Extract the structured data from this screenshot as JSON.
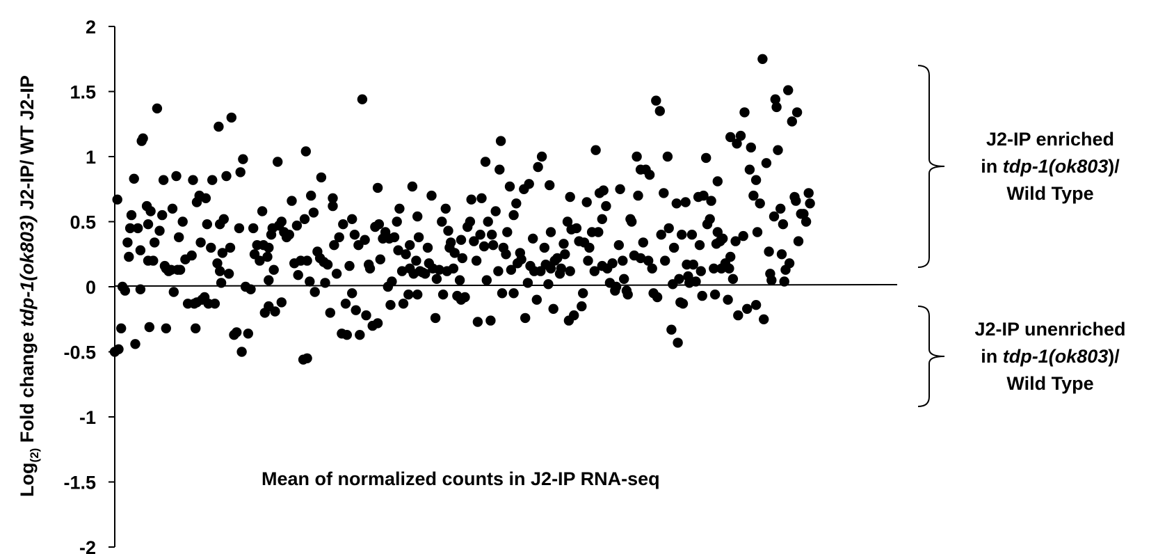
{
  "chart_data": {
    "type": "scatter",
    "title": "",
    "xlabel": "Mean of normalized counts in J2-IP RNA-seq",
    "ylabel": {
      "prefix": "Log",
      "subscript": "(2)",
      "middle": " Fold change ",
      "italic": "tdp-1(ok803)",
      "suffix": " J2-IP/ WT J2-IP"
    },
    "ylim": [
      -2,
      2
    ],
    "xlim": [
      0,
      610
    ],
    "yticks": [
      "2",
      "1.5",
      "1",
      "0.5",
      "0",
      "-0.5",
      "-1",
      "-1.5",
      "-2"
    ],
    "grid": false,
    "legend": "none",
    "point_color": "#000000",
    "annotations": [
      {
        "name": "enriched",
        "bracket": [
          0.15,
          1.7
        ],
        "lines": [
          [
            {
              "t": "J2-IP enriched",
              "i": false
            }
          ],
          [
            {
              "t": "in ",
              "i": false
            },
            {
              "t": "tdp-1(ok803",
              "i": true
            },
            {
              "t": ")/",
              "i": false
            }
          ],
          [
            {
              "t": "Wild Type",
              "i": false
            }
          ]
        ]
      },
      {
        "name": "unenriched",
        "bracket": [
          -0.92,
          -0.15
        ],
        "lines": [
          [
            {
              "t": "J2-IP unenriched",
              "i": false
            }
          ],
          [
            {
              "t": "in ",
              "i": false
            },
            {
              "t": "tdp-1(ok803",
              "i": true
            },
            {
              "t": ")/",
              "i": false
            }
          ],
          [
            {
              "t": "Wild Type",
              "i": false
            }
          ]
        ]
      }
    ],
    "points": [
      [
        0,
        -0.5
      ],
      [
        2,
        0.67
      ],
      [
        3,
        -0.48
      ],
      [
        5,
        -0.32
      ],
      [
        6,
        0.0
      ],
      [
        8,
        -0.03
      ],
      [
        10,
        0.34
      ],
      [
        11,
        0.23
      ],
      [
        12,
        0.45
      ],
      [
        13,
        0.55
      ],
      [
        15,
        0.83
      ],
      [
        16,
        -0.44
      ],
      [
        18,
        0.45
      ],
      [
        20,
        0.28
      ],
      [
        21,
        1.12
      ],
      [
        22,
        1.14
      ],
      [
        25,
        0.62
      ],
      [
        26,
        0.48
      ],
      [
        27,
        -0.31
      ],
      [
        28,
        0.58
      ],
      [
        30,
        0.2
      ],
      [
        31,
        0.34
      ],
      [
        33,
        1.37
      ],
      [
        35,
        0.43
      ],
      [
        37,
        0.55
      ],
      [
        38,
        0.82
      ],
      [
        39,
        0.16
      ],
      [
        40,
        -0.32
      ],
      [
        42,
        0.12
      ],
      [
        44,
        0.13
      ],
      [
        45,
        0.6
      ],
      [
        46,
        -0.04
      ],
      [
        48,
        0.85
      ],
      [
        49,
        0.13
      ],
      [
        50,
        0.38
      ],
      [
        51,
        0.13
      ],
      [
        53,
        0.5
      ],
      [
        55,
        0.21
      ],
      [
        57,
        -0.13
      ],
      [
        60,
        0.24
      ],
      [
        61,
        0.82
      ],
      [
        62,
        -0.13
      ],
      [
        63,
        -0.32
      ],
      [
        64,
        -0.12
      ],
      [
        66,
        0.7
      ],
      [
        67,
        0.34
      ],
      [
        68,
        -0.1
      ],
      [
        70,
        -0.08
      ],
      [
        71,
        0.68
      ],
      [
        73,
        -0.13
      ],
      [
        75,
        0.3
      ],
      [
        76,
        0.82
      ],
      [
        78,
        -0.13
      ],
      [
        80,
        0.18
      ],
      [
        81,
        1.23
      ],
      [
        82,
        0.48
      ],
      [
        83,
        0.03
      ],
      [
        84,
        0.26
      ],
      [
        85,
        0.52
      ],
      [
        87,
        0.85
      ],
      [
        89,
        0.1
      ],
      [
        90,
        0.3
      ],
      [
        91,
        1.3
      ],
      [
        93,
        -0.37
      ],
      [
        95,
        -0.35
      ],
      [
        97,
        0.45
      ],
      [
        99,
        -0.5
      ],
      [
        100,
        0.98
      ],
      [
        102,
        0.0
      ],
      [
        104,
        -0.36
      ],
      [
        106,
        -0.02
      ],
      [
        108,
        0.45
      ],
      [
        109,
        0.25
      ],
      [
        111,
        0.32
      ],
      [
        113,
        0.2
      ],
      [
        115,
        0.58
      ],
      [
        116,
        0.32
      ],
      [
        117,
        -0.2
      ],
      [
        119,
        0.23
      ],
      [
        120,
        0.3
      ],
      [
        122,
        0.4
      ],
      [
        123,
        0.45
      ],
      [
        124,
        0.13
      ],
      [
        125,
        -0.19
      ],
      [
        127,
        0.96
      ],
      [
        128,
        0.47
      ],
      [
        130,
        -0.12
      ],
      [
        132,
        0.42
      ],
      [
        134,
        0.38
      ],
      [
        136,
        0.4
      ],
      [
        138,
        0.66
      ],
      [
        140,
        0.18
      ],
      [
        142,
        0.47
      ],
      [
        143,
        0.09
      ],
      [
        145,
        0.2
      ],
      [
        147,
        -0.56
      ],
      [
        148,
        0.52
      ],
      [
        149,
        1.04
      ],
      [
        150,
        -0.55
      ],
      [
        152,
        0.04
      ],
      [
        153,
        0.7
      ],
      [
        155,
        0.57
      ],
      [
        156,
        -0.04
      ],
      [
        158,
        0.27
      ],
      [
        160,
        0.22
      ],
      [
        161,
        0.84
      ],
      [
        163,
        0.19
      ],
      [
        164,
        0.03
      ],
      [
        166,
        0.17
      ],
      [
        168,
        -0.2
      ],
      [
        170,
        0.68
      ],
      [
        171,
        0.32
      ],
      [
        173,
        0.1
      ],
      [
        175,
        0.38
      ],
      [
        177,
        -0.36
      ],
      [
        178,
        0.48
      ],
      [
        180,
        -0.13
      ],
      [
        181,
        -0.37
      ],
      [
        183,
        0.16
      ],
      [
        185,
        0.52
      ],
      [
        187,
        0.4
      ],
      [
        188,
        -0.18
      ],
      [
        190,
        0.32
      ],
      [
        191,
        -0.37
      ],
      [
        193,
        1.44
      ],
      [
        195,
        0.36
      ],
      [
        196,
        -0.22
      ],
      [
        198,
        0.17
      ],
      [
        199,
        0.14
      ],
      [
        201,
        -0.3
      ],
      [
        203,
        0.46
      ],
      [
        205,
        -0.28
      ],
      [
        206,
        0.48
      ],
      [
        207,
        0.21
      ],
      [
        209,
        0.37
      ],
      [
        211,
        0.42
      ],
      [
        213,
        0.0
      ],
      [
        214,
        0.37
      ],
      [
        215,
        -0.14
      ],
      [
        216,
        0.04
      ],
      [
        218,
        0.38
      ],
      [
        220,
        0.5
      ],
      [
        221,
        0.28
      ],
      [
        222,
        0.6
      ],
      [
        224,
        0.12
      ],
      [
        225,
        -0.13
      ],
      [
        227,
        0.25
      ],
      [
        229,
        -0.06
      ],
      [
        230,
        0.14
      ],
      [
        232,
        0.77
      ],
      [
        233,
        0.1
      ],
      [
        235,
        0.2
      ],
      [
        236,
        0.54
      ],
      [
        237,
        0.38
      ],
      [
        238,
        0.12
      ],
      [
        240,
        0.11
      ],
      [
        242,
        0.1
      ],
      [
        244,
        0.3
      ],
      [
        245,
        0.18
      ],
      [
        247,
        0.7
      ],
      [
        248,
        0.14
      ],
      [
        250,
        -0.24
      ],
      [
        251,
        0.06
      ],
      [
        253,
        0.13
      ],
      [
        255,
        0.5
      ],
      [
        256,
        -0.06
      ],
      [
        258,
        0.6
      ],
      [
        259,
        0.12
      ],
      [
        261,
        0.3
      ],
      [
        262,
        0.34
      ],
      [
        264,
        0.14
      ],
      [
        265,
        0.26
      ],
      [
        267,
        -0.07
      ],
      [
        269,
        0.05
      ],
      [
        270,
        0.36
      ],
      [
        271,
        0.22
      ],
      [
        273,
        -0.08
      ],
      [
        275,
        0.46
      ],
      [
        277,
        0.5
      ],
      [
        278,
        0.67
      ],
      [
        280,
        0.35
      ],
      [
        282,
        0.2
      ],
      [
        283,
        -0.27
      ],
      [
        285,
        0.4
      ],
      [
        286,
        0.68
      ],
      [
        288,
        0.31
      ],
      [
        289,
        0.96
      ],
      [
        291,
        0.5
      ],
      [
        293,
        -0.26
      ],
      [
        294,
        0.4
      ],
      [
        295,
        0.32
      ],
      [
        297,
        0.58
      ],
      [
        299,
        0.12
      ],
      [
        300,
        0.9
      ],
      [
        301,
        1.12
      ],
      [
        302,
        -0.05
      ],
      [
        303,
        0.3
      ],
      [
        305,
        0.25
      ],
      [
        306,
        0.42
      ],
      [
        308,
        0.77
      ],
      [
        309,
        0.13
      ],
      [
        311,
        -0.05
      ],
      [
        313,
        0.64
      ],
      [
        314,
        0.18
      ],
      [
        316,
        0.26
      ],
      [
        317,
        0.21
      ],
      [
        319,
        0.75
      ],
      [
        320,
        -0.24
      ],
      [
        322,
        0.03
      ],
      [
        323,
        0.79
      ],
      [
        324,
        0.16
      ],
      [
        326,
        0.37
      ],
      [
        327,
        0.12
      ],
      [
        329,
        -0.1
      ],
      [
        330,
        0.92
      ],
      [
        332,
        0.12
      ],
      [
        333,
        1.0
      ],
      [
        335,
        0.3
      ],
      [
        336,
        0.17
      ],
      [
        338,
        0.02
      ],
      [
        339,
        0.78
      ],
      [
        340,
        0.14
      ],
      [
        342,
        -0.17
      ],
      [
        343,
        0.2
      ],
      [
        345,
        0.22
      ],
      [
        347,
        0.1
      ],
      [
        348,
        0.14
      ],
      [
        350,
        0.33
      ],
      [
        351,
        0.25
      ],
      [
        353,
        0.5
      ],
      [
        354,
        -0.26
      ],
      [
        355,
        0.69
      ],
      [
        356,
        0.44
      ],
      [
        358,
        -0.22
      ],
      [
        360,
        0.45
      ],
      [
        362,
        0.35
      ],
      [
        364,
        -0.15
      ],
      [
        365,
        -0.05
      ],
      [
        366,
        0.34
      ],
      [
        368,
        0.65
      ],
      [
        369,
        0.2
      ],
      [
        370,
        0.3
      ],
      [
        372,
        0.42
      ],
      [
        374,
        0.12
      ],
      [
        375,
        1.05
      ],
      [
        377,
        0.42
      ],
      [
        378,
        0.72
      ],
      [
        380,
        0.16
      ],
      [
        381,
        0.74
      ],
      [
        383,
        0.62
      ],
      [
        384,
        0.14
      ],
      [
        386,
        0.03
      ],
      [
        388,
        0.18
      ],
      [
        390,
        -0.03
      ],
      [
        391,
        0.0
      ],
      [
        393,
        0.32
      ],
      [
        394,
        0.75
      ],
      [
        396,
        0.2
      ],
      [
        397,
        0.06
      ],
      [
        399,
        -0.03
      ],
      [
        400,
        -0.06
      ],
      [
        402,
        0.52
      ],
      [
        403,
        0.5
      ],
      [
        405,
        0.24
      ],
      [
        407,
        1.0
      ],
      [
        408,
        0.7
      ],
      [
        410,
        0.22
      ],
      [
        412,
        0.34
      ],
      [
        414,
        0.9
      ],
      [
        416,
        0.2
      ],
      [
        417,
        0.86
      ],
      [
        419,
        0.14
      ],
      [
        420,
        -0.05
      ],
      [
        422,
        1.43
      ],
      [
        423,
        -0.08
      ],
      [
        425,
        1.35
      ],
      [
        426,
        0.4
      ],
      [
        428,
        0.72
      ],
      [
        429,
        0.2
      ],
      [
        431,
        1.0
      ],
      [
        432,
        0.45
      ],
      [
        434,
        -0.33
      ],
      [
        435,
        0.02
      ],
      [
        436,
        0.3
      ],
      [
        438,
        0.64
      ],
      [
        439,
        -0.43
      ],
      [
        441,
        -0.12
      ],
      [
        442,
        0.4
      ],
      [
        443,
        -0.13
      ],
      [
        445,
        0.65
      ],
      [
        446,
        0.17
      ],
      [
        447,
        0.08
      ],
      [
        448,
        0.03
      ],
      [
        450,
        0.4
      ],
      [
        451,
        0.17
      ],
      [
        453,
        0.04
      ],
      [
        455,
        0.69
      ],
      [
        456,
        0.32
      ],
      [
        458,
        -0.07
      ],
      [
        459,
        0.7
      ],
      [
        461,
        0.99
      ],
      [
        462,
        0.48
      ],
      [
        464,
        0.52
      ],
      [
        465,
        0.66
      ],
      [
        467,
        0.14
      ],
      [
        468,
        -0.06
      ],
      [
        469,
        0.33
      ],
      [
        470,
        0.81
      ],
      [
        472,
        0.35
      ],
      [
        473,
        0.14
      ],
      [
        474,
        0.37
      ],
      [
        476,
        0.18
      ],
      [
        478,
        -0.1
      ],
      [
        479,
        0.14
      ],
      [
        480,
        1.15
      ],
      [
        482,
        0.06
      ],
      [
        484,
        0.35
      ],
      [
        485,
        1.1
      ],
      [
        486,
        -0.22
      ],
      [
        488,
        1.16
      ],
      [
        490,
        0.39
      ],
      [
        491,
        1.34
      ],
      [
        493,
        -0.17
      ],
      [
        495,
        0.9
      ],
      [
        496,
        1.07
      ],
      [
        498,
        0.7
      ],
      [
        500,
        0.82
      ],
      [
        501,
        0.42
      ],
      [
        503,
        0.64
      ],
      [
        505,
        1.75
      ],
      [
        506,
        -0.25
      ],
      [
        508,
        0.95
      ],
      [
        510,
        0.27
      ],
      [
        511,
        0.1
      ],
      [
        512,
        0.05
      ],
      [
        514,
        0.54
      ],
      [
        515,
        1.44
      ],
      [
        516,
        1.38
      ],
      [
        517,
        1.05
      ],
      [
        519,
        0.6
      ],
      [
        521,
        0.48
      ],
      [
        522,
        0.04
      ],
      [
        523,
        0.13
      ],
      [
        525,
        1.51
      ],
      [
        526,
        0.18
      ],
      [
        528,
        1.27
      ],
      [
        530,
        0.69
      ],
      [
        531,
        0.66
      ],
      [
        532,
        1.34
      ],
      [
        533,
        0.35
      ],
      [
        535,
        0.56
      ],
      [
        537,
        0.56
      ],
      [
        539,
        0.5
      ],
      [
        541,
        0.72
      ],
      [
        542,
        0.64
      ],
      [
        170,
        0.62
      ],
      [
        40,
        0.14
      ],
      [
        236,
        -0.06
      ],
      [
        98,
        0.88
      ],
      [
        72,
        0.48
      ],
      [
        120,
        -0.15
      ],
      [
        260,
        0.43
      ],
      [
        205,
        0.76
      ],
      [
        457,
        0.12
      ],
      [
        311,
        0.55
      ],
      [
        470,
        0.42
      ],
      [
        150,
        0.2
      ],
      [
        82,
        0.12
      ],
      [
        355,
        0.12
      ],
      [
        26,
        0.2
      ],
      [
        480,
        0.23
      ],
      [
        185,
        -0.05
      ],
      [
        410,
        0.9
      ],
      [
        290,
        0.05
      ],
      [
        500,
        -0.14
      ],
      [
        130,
        0.5
      ],
      [
        64,
        0.65
      ],
      [
        230,
        0.32
      ],
      [
        380,
        0.52
      ],
      [
        120,
        0.05
      ],
      [
        440,
        0.06
      ],
      [
        20,
        -0.02
      ],
      [
        340,
        0.42
      ],
      [
        270,
        -0.1
      ],
      [
        520,
        0.25
      ]
    ]
  }
}
